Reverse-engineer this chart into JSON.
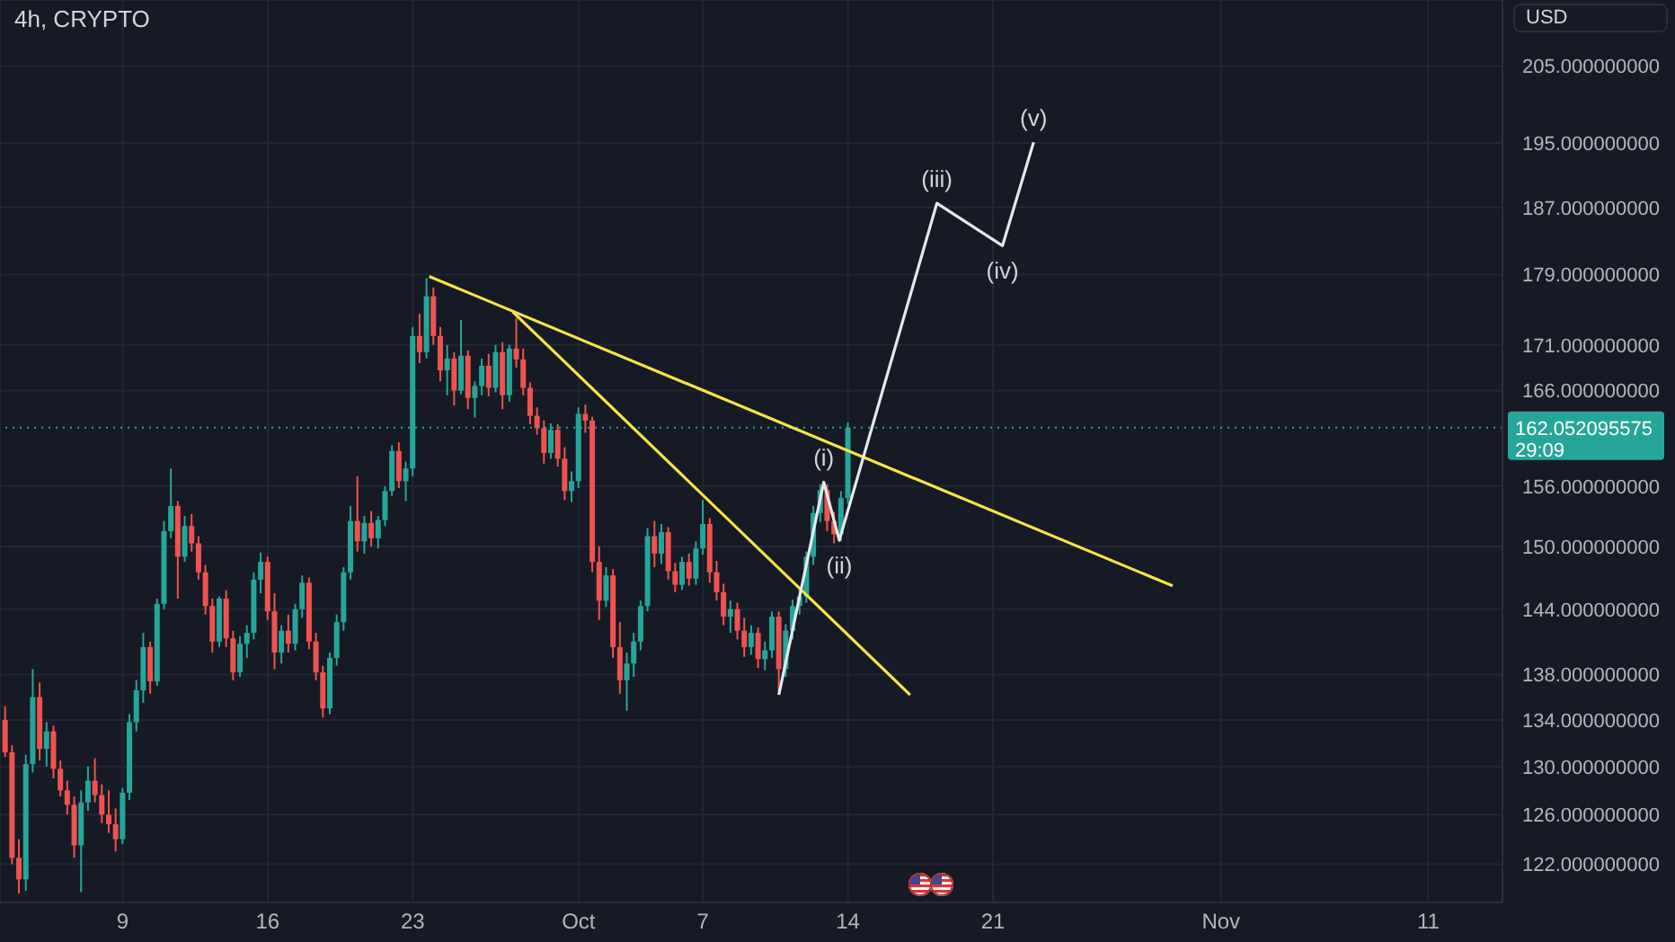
{
  "chart_data": {
    "type": "candlestick",
    "title": "4h, CRYPTO",
    "ylabel": "USD",
    "x": [
      "--09-03T08:00",
      "--09-03T16:00",
      "--09-04T00:00",
      "--09-04T08:00",
      "--09-04T16:00",
      "--09-05T00:00",
      "--09-05T08:00",
      "--09-05T16:00",
      "--09-06T00:00",
      "--09-06T08:00",
      "--09-06T16:00",
      "--09-07T00:00",
      "--09-07T08:00",
      "--09-07T16:00",
      "--09-08T00:00",
      "--09-08T08:00",
      "--09-08T16:00",
      "--09-09T00:00",
      "--09-09T08:00",
      "--09-09T16:00",
      "--09-10T00:00",
      "--09-10T08:00",
      "--09-10T16:00",
      "--09-11T00:00",
      "--09-11T08:00",
      "--09-11T16:00",
      "--09-12T00:00",
      "--09-12T08:00",
      "--09-12T16:00",
      "--09-13T00:00",
      "--09-13T08:00",
      "--09-13T16:00",
      "--09-14T00:00",
      "--09-14T08:00",
      "--09-14T16:00",
      "--09-15T00:00",
      "--09-15T08:00",
      "--09-15T16:00",
      "--09-16T00:00",
      "--09-16T08:00",
      "--09-16T16:00",
      "--09-17T00:00",
      "--09-17T08:00",
      "--09-17T16:00",
      "--09-18T00:00",
      "--09-18T08:00",
      "--09-18T16:00",
      "--09-19T00:00",
      "--09-19T08:00",
      "--09-19T16:00",
      "--09-20T00:00",
      "--09-20T08:00",
      "--09-20T16:00",
      "--09-21T00:00",
      "--09-21T08:00",
      "--09-21T16:00",
      "--09-22T00:00",
      "--09-22T08:00",
      "--09-22T16:00",
      "--09-23T00:00",
      "--09-23T08:00",
      "--09-23T16:00",
      "--09-24T00:00",
      "--09-24T08:00",
      "--09-24T16:00",
      "--09-25T00:00",
      "--09-25T08:00",
      "--09-25T16:00",
      "--09-26T00:00",
      "--09-26T08:00",
      "--09-26T16:00",
      "--09-27T00:00",
      "--09-27T08:00",
      "--09-27T16:00",
      "--09-28T00:00",
      "--09-28T08:00",
      "--09-28T16:00",
      "--09-29T00:00",
      "--09-29T08:00",
      "--09-29T16:00",
      "--09-30T00:00",
      "--09-30T08:00",
      "--09-30T16:00",
      "--10-01T00:00",
      "--10-01T08:00",
      "--10-01T16:00",
      "--10-02T00:00",
      "--10-02T08:00",
      "--10-02T16:00",
      "--10-03T00:00",
      "--10-03T08:00",
      "--10-03T16:00",
      "--10-04T00:00",
      "--10-04T08:00",
      "--10-04T16:00",
      "--10-05T00:00",
      "--10-05T08:00",
      "--10-05T16:00",
      "--10-06T00:00",
      "--10-06T08:00",
      "--10-06T16:00",
      "--10-07T00:00",
      "--10-07T08:00",
      "--10-07T16:00",
      "--10-08T00:00",
      "--10-08T08:00",
      "--10-08T16:00",
      "--10-09T00:00",
      "--10-09T08:00",
      "--10-09T16:00",
      "--10-10T00:00",
      "--10-10T08:00",
      "--10-10T16:00",
      "--10-11T00:00",
      "--10-11T08:00",
      "--10-11T16:00",
      "--10-12T00:00",
      "--10-12T08:00",
      "--10-12T16:00",
      "--10-13T00:00",
      "--10-13T08:00",
      "--10-13T16:00",
      "--10-14T00:00"
    ],
    "ohlc": [
      [
        134,
        135.2,
        130.8,
        131.2
      ],
      [
        131.2,
        131.8,
        122,
        122.5
      ],
      [
        122.5,
        124,
        119.7,
        120.8
      ],
      [
        120.8,
        131,
        119.9,
        130.2
      ],
      [
        130.2,
        138.5,
        129.5,
        136
      ],
      [
        136,
        137.3,
        130.5,
        131.5
      ],
      [
        131.5,
        133.8,
        130,
        133
      ],
      [
        133,
        133.5,
        129,
        129.8
      ],
      [
        129.8,
        130.5,
        127.5,
        128
      ],
      [
        128,
        128.8,
        126,
        126.8
      ],
      [
        126.8,
        127.5,
        122.5,
        123.5
      ],
      [
        123.5,
        128,
        119.8,
        127
      ],
      [
        127,
        130,
        126.3,
        128.8
      ],
      [
        128.8,
        130.7,
        127,
        127.6
      ],
      [
        127.6,
        128.5,
        125.3,
        126
      ],
      [
        126,
        128,
        124.5,
        125.2
      ],
      [
        125.2,
        126.5,
        123,
        124
      ],
      [
        124,
        128.2,
        123.6,
        127.8
      ],
      [
        127.8,
        134.5,
        127.2,
        133.8
      ],
      [
        133.8,
        137.5,
        133,
        136.6
      ],
      [
        136.6,
        141.8,
        135.5,
        140.5
      ],
      [
        140.5,
        141,
        136.3,
        137.4
      ],
      [
        137.4,
        145,
        137,
        144.5
      ],
      [
        144.5,
        152.5,
        144,
        151.5
      ],
      [
        151.5,
        157.8,
        150.8,
        154
      ],
      [
        154,
        154.5,
        145,
        149
      ],
      [
        149,
        153,
        148.5,
        152
      ],
      [
        152,
        153.2,
        149.5,
        150.3
      ],
      [
        150.3,
        151,
        146.8,
        147.5
      ],
      [
        147.5,
        148.2,
        143.5,
        144.3
      ],
      [
        144.3,
        145,
        140,
        141
      ],
      [
        141,
        145.2,
        140.5,
        145
      ],
      [
        145,
        145.8,
        140.5,
        141.3
      ],
      [
        141.3,
        142,
        137.5,
        138.2
      ],
      [
        138.2,
        141.5,
        137.8,
        140.8
      ],
      [
        140.8,
        142.5,
        139.5,
        141.8
      ],
      [
        141.8,
        147.5,
        141.2,
        146.8
      ],
      [
        146.8,
        149.4,
        145.5,
        148.5
      ],
      [
        148.5,
        149,
        143,
        143.8
      ],
      [
        143.8,
        145.5,
        138.5,
        140
      ],
      [
        140,
        142.5,
        139,
        142
      ],
      [
        142,
        143.5,
        140,
        140.8
      ],
      [
        140.8,
        144.5,
        140.2,
        144
      ],
      [
        144,
        147.2,
        143.2,
        146.5
      ],
      [
        146.5,
        147,
        140.3,
        141
      ],
      [
        141,
        141.8,
        137.5,
        138.2
      ],
      [
        138.2,
        138.8,
        134.2,
        135
      ],
      [
        135,
        140,
        134.5,
        139.5
      ],
      [
        139.5,
        143.5,
        138.8,
        142.8
      ],
      [
        142.8,
        148,
        142,
        147.5
      ],
      [
        147.5,
        154,
        146.8,
        152.5
      ],
      [
        152.5,
        157,
        149.5,
        150.5
      ],
      [
        150.5,
        153,
        149.3,
        152.3
      ],
      [
        152.3,
        153.5,
        150,
        150.8
      ],
      [
        150.8,
        153,
        149.8,
        152.6
      ],
      [
        152.6,
        156,
        152,
        155.5
      ],
      [
        155.5,
        160.2,
        155,
        159.6
      ],
      [
        159.6,
        160.5,
        155.8,
        156.5
      ],
      [
        156.5,
        158.5,
        154.5,
        157.8
      ],
      [
        157.8,
        173,
        157,
        172
      ],
      [
        172,
        174.5,
        169,
        170.2
      ],
      [
        170.2,
        178.6,
        169.5,
        176.5
      ],
      [
        176.5,
        177.5,
        171,
        172
      ],
      [
        172,
        173,
        167,
        168.2
      ],
      [
        168.2,
        171,
        165.5,
        169.5
      ],
      [
        169.5,
        170.2,
        164.4,
        166
      ],
      [
        166,
        173.8,
        165.6,
        169.8
      ],
      [
        169.8,
        170.4,
        164,
        165.2
      ],
      [
        165.2,
        167,
        163.1,
        166.5
      ],
      [
        166.5,
        169.5,
        165.5,
        168.7
      ],
      [
        168.7,
        170,
        165.4,
        166.3
      ],
      [
        166.3,
        171,
        165.8,
        170.2
      ],
      [
        170.2,
        171.3,
        164,
        165.5
      ],
      [
        165.5,
        171,
        164.8,
        170.6
      ],
      [
        170.6,
        174,
        168.5,
        169.4
      ],
      [
        169.4,
        170.6,
        165.5,
        166.3
      ],
      [
        166.3,
        166.9,
        162.4,
        163.3
      ],
      [
        163.3,
        164.2,
        161.3,
        162
      ],
      [
        162,
        162.8,
        158.3,
        159.4
      ],
      [
        159.4,
        162.5,
        158.8,
        161.8
      ],
      [
        161.8,
        162.4,
        158,
        158.8
      ],
      [
        158.8,
        160,
        154.6,
        155.5
      ],
      [
        155.5,
        157.5,
        154.4,
        156.5
      ],
      [
        156.5,
        164.2,
        155.8,
        163.5
      ],
      [
        163.5,
        164.5,
        161.5,
        162.8
      ],
      [
        162.8,
        163.2,
        147.5,
        148.5
      ],
      [
        148.5,
        150,
        143,
        144.8
      ],
      [
        144.8,
        148,
        144.2,
        147.2
      ],
      [
        147.2,
        147.8,
        139.5,
        140.5
      ],
      [
        140.5,
        142.8,
        136.3,
        137.5
      ],
      [
        137.5,
        140,
        134.8,
        139
      ],
      [
        139,
        141.8,
        137.8,
        141
      ],
      [
        141,
        144.8,
        140.2,
        144.3
      ],
      [
        144.3,
        151.8,
        143.8,
        151
      ],
      [
        151,
        152.5,
        148,
        149.3
      ],
      [
        149.3,
        152.2,
        148.3,
        151.4
      ],
      [
        151.4,
        151.9,
        146.8,
        147.6
      ],
      [
        147.6,
        148.4,
        145.6,
        146.3
      ],
      [
        146.3,
        149,
        145.8,
        148.5
      ],
      [
        148.5,
        149.3,
        146.2,
        146.9
      ],
      [
        146.9,
        150.5,
        146.3,
        149.8
      ],
      [
        149.8,
        154.6,
        149.2,
        152.2
      ],
      [
        152.2,
        152.8,
        146.5,
        147.5
      ],
      [
        147.5,
        148.6,
        144.8,
        145.6
      ],
      [
        145.6,
        146.4,
        142.5,
        143.3
      ],
      [
        143.3,
        144.8,
        141.8,
        144
      ],
      [
        144,
        144.6,
        141.2,
        142
      ],
      [
        142,
        143.2,
        139.6,
        140.5
      ],
      [
        140.5,
        142.5,
        139.8,
        141.8
      ],
      [
        141.8,
        142.3,
        138.6,
        139.4
      ],
      [
        139.4,
        141,
        138.4,
        140.2
      ],
      [
        140.2,
        143.8,
        139.5,
        143.3
      ],
      [
        143.3,
        143.8,
        136.2,
        138.5
      ],
      [
        138.5,
        142.6,
        137.8,
        142
      ],
      [
        142,
        144.9,
        141.2,
        144.3
      ],
      [
        144.3,
        145.8,
        143.5,
        145.2
      ],
      [
        145.2,
        149.5,
        144.6,
        149
      ],
      [
        149,
        154,
        148.2,
        153.3
      ],
      [
        153.3,
        156.2,
        152.4,
        155.6
      ],
      [
        155.6,
        156.2,
        151.5,
        152.5
      ],
      [
        152.5,
        153.4,
        150.3,
        151.2
      ],
      [
        151.2,
        155.5,
        150.5,
        154.8
      ],
      [
        154.8,
        162.6,
        154.2,
        162.05
      ]
    ],
    "colors": [
      "#ef5350",
      "#ef5350",
      "#ef5350",
      "#26a69a",
      "#26a69a",
      "#ef5350",
      "#26a69a",
      "#ef5350",
      "#ef5350",
      "#ef5350",
      "#ef5350",
      "#26a69a",
      "#26a69a",
      "#ef5350",
      "#ef5350",
      "#ef5350",
      "#ef5350",
      "#26a69a",
      "#26a69a",
      "#26a69a",
      "#26a69a",
      "#ef5350",
      "#26a69a",
      "#26a69a",
      "#26a69a",
      "#ef5350",
      "#26a69a",
      "#ef5350",
      "#ef5350",
      "#ef5350",
      "#ef5350",
      "#26a69a",
      "#ef5350",
      "#ef5350",
      "#26a69a",
      "#26a69a",
      "#26a69a",
      "#26a69a",
      "#ef5350",
      "#ef5350",
      "#26a69a",
      "#ef5350",
      "#26a69a",
      "#26a69a",
      "#ef5350",
      "#ef5350",
      "#ef5350",
      "#26a69a",
      "#26a69a",
      "#26a69a",
      "#26a69a",
      "#ef5350",
      "#26a69a",
      "#ef5350",
      "#26a69a",
      "#26a69a",
      "#26a69a",
      "#ef5350",
      "#26a69a",
      "#26a69a",
      "#ef5350",
      "#26a69a",
      "#ef5350",
      "#ef5350",
      "#26a69a",
      "#ef5350",
      "#26a69a",
      "#ef5350",
      "#26a69a",
      "#26a69a",
      "#ef5350",
      "#26a69a",
      "#ef5350",
      "#26a69a",
      "#ef5350",
      "#ef5350",
      "#ef5350",
      "#ef5350",
      "#ef5350",
      "#26a69a",
      "#ef5350",
      "#ef5350",
      "#26a69a",
      "#26a69a",
      "#ef5350",
      "#ef5350",
      "#ef5350",
      "#26a69a",
      "#ef5350",
      "#ef5350",
      "#26a69a",
      "#26a69a",
      "#26a69a",
      "#26a69a",
      "#ef5350",
      "#26a69a",
      "#ef5350",
      "#ef5350",
      "#26a69a",
      "#ef5350",
      "#26a69a",
      "#26a69a",
      "#ef5350",
      "#ef5350",
      "#ef5350",
      "#26a69a",
      "#ef5350",
      "#ef5350",
      "#26a69a",
      "#ef5350",
      "#26a69a",
      "#26a69a",
      "#ef5350",
      "#26a69a",
      "#26a69a",
      "#26a69a",
      "#26a69a",
      "#26a69a",
      "#26a69a",
      "#ef5350",
      "#ef5350",
      "#26a69a",
      "#26a69a"
    ],
    "series": [
      {
        "type": "line",
        "color": "#f5e44a",
        "x": [
          "--09-23T19:00",
          "--10-29T16:00"
        ],
        "values": [
          178.8,
          146.2
        ]
      },
      {
        "type": "line",
        "color": "#f5e44a",
        "x": [
          "--09-27T20:00",
          "--10-17T00:00"
        ],
        "values": [
          174.7,
          136.2
        ]
      },
      {
        "type": "line",
        "color": "#e6e8ee",
        "x": [
          "--10-10T16:00",
          "--10-12T20:00",
          "--10-13T14:00",
          "--10-18T07:00",
          "--10-21T11:00",
          "--10-22T23:00"
        ],
        "values": [
          136.2,
          156.4,
          150.6,
          187.5,
          182.4,
          195.1
        ]
      }
    ],
    "annotations": [
      {
        "text": "(i)",
        "x": "--10-12T20:00",
        "y": 156.4
      },
      {
        "text": "(ii)",
        "x": "--10-13T14:00",
        "y": 150.6
      },
      {
        "text": "(iii)",
        "x": "--10-18T07:00",
        "y": 187.5
      },
      {
        "text": "(iv)",
        "x": "--10-21T11:00",
        "y": 182.4
      },
      {
        "text": "(v)",
        "x": "--10-22T23:00",
        "y": 195.1
      },
      "29:09"
    ],
    "ref_lines": [
      {
        "axis": "y",
        "value": 162.052095575,
        "label": "162.052095575",
        "color": "#26a69a",
        "line_style": "dotted"
      }
    ],
    "xlim": [
      "--09-03T02:00",
      "--11-14T14:00"
    ],
    "xticks": [
      {
        "value": "--09-09",
        "label": "9"
      },
      {
        "value": "--09-16",
        "label": "16"
      },
      {
        "value": "--09-23",
        "label": "23"
      },
      {
        "value": "--10-01",
        "label": "Oct"
      },
      {
        "value": "--10-07",
        "label": "7"
      },
      {
        "value": "--10-14",
        "label": "14"
      },
      {
        "value": "--10-21",
        "label": "21"
      },
      {
        "value": "--11-01",
        "label": "Nov"
      },
      {
        "value": "--11-11",
        "label": "11"
      }
    ],
    "ylim": [
      119,
      214
    ],
    "yticks": [
      {
        "value": 122,
        "label": "122.000000000"
      },
      {
        "value": 126,
        "label": "126.000000000"
      },
      {
        "value": 130,
        "label": "130.000000000"
      },
      {
        "value": 134,
        "label": "134.000000000"
      },
      {
        "value": 138,
        "label": "138.000000000"
      },
      {
        "value": 144,
        "label": "144.000000000"
      },
      {
        "value": 150,
        "label": "150.000000000"
      },
      {
        "value": 156,
        "label": "156.000000000"
      },
      {
        "value": 166,
        "label": "166.000000000"
      },
      {
        "value": 171,
        "label": "171.000000000"
      },
      {
        "value": 179,
        "label": "179.000000000"
      },
      {
        "value": 187,
        "label": "187.000000000"
      },
      {
        "value": 195,
        "label": "195.000000000"
      },
      {
        "value": 205,
        "label": "205.000000000"
      }
    ],
    "log": true,
    "grid": true
  }
}
